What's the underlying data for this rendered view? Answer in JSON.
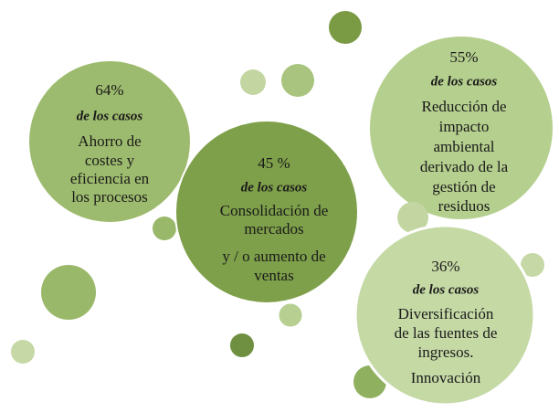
{
  "nodes": [
    {
      "percent": "64%",
      "subtitle": "de los casos",
      "lines": [
        "Ahorro de",
        "costes y",
        "eficiencia en",
        "los procesos"
      ]
    },
    {
      "percent": "45 %",
      "subtitle": "de los casos",
      "lines": [
        "Consolidación de",
        "mercados",
        "y / o aumento de",
        "ventas"
      ]
    },
    {
      "percent": "55%",
      "subtitle": "de los casos",
      "lines": [
        "Reducción de",
        "impacto",
        "ambiental",
        "derivado de la",
        "gestión de",
        "residuos"
      ]
    },
    {
      "percent": "36%",
      "subtitle": "de los casos",
      "lines": [
        "Diversificación",
        "de las fuentes de",
        "ingresos.",
        "Innovación"
      ]
    }
  ]
}
